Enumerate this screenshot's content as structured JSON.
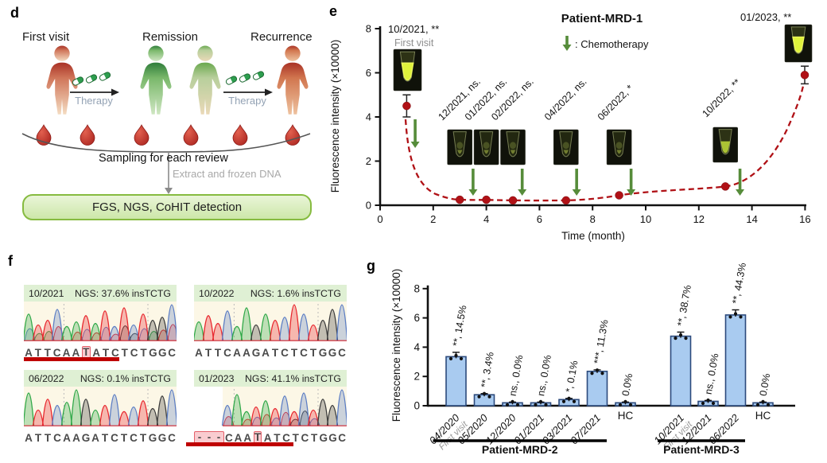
{
  "panel_d": {
    "panel_label": "d",
    "stages": [
      {
        "label": "First visit",
        "state": "disease"
      },
      {
        "label": "Remission",
        "state": "remission"
      },
      {
        "label": "Recurrence",
        "state": "disease"
      }
    ],
    "therapy_label": "Therapy",
    "sampling_label": "Sampling for each review",
    "extract_label": "Extract and frozen DNA",
    "detection_label": "FGS, NGS, CoHIT detection",
    "blood_drops": 6
  },
  "panel_e": {
    "panel_label": "e"
  },
  "panel_f": {
    "panel_label": "f",
    "base_colors": {
      "A": "#2fa848",
      "T": "#e8262d",
      "C": "#5b7dc4",
      "G": "#3a3a3a"
    },
    "header_bg": "#dff0d4",
    "trace_bg": "#fcf7e6",
    "underline_color": "#bf0000",
    "cards": [
      {
        "date": "10/2021",
        "ngs": "NGS: 37.6% insTCTG",
        "sequence": "ATTCAATATCTCTGGC",
        "highlight_index": 6,
        "underline_cells": 10,
        "underline_offset": 0,
        "deleted_prefix": 0,
        "mixed": true
      },
      {
        "date": "10/2022",
        "ngs": "NGS: 1.6% insTCTG",
        "sequence": "ATTCAAGATCTCTGGC",
        "highlight_index": -1,
        "underline_cells": 0,
        "underline_offset": 0,
        "deleted_prefix": 0,
        "mixed": false
      },
      {
        "date": "06/2022",
        "ngs": "NGS: 0.1% insTCTG",
        "sequence": "ATTCAAGATCTCTGGC",
        "highlight_index": -1,
        "underline_cells": 0,
        "underline_offset": 0,
        "deleted_prefix": 0,
        "mixed": false
      },
      {
        "date": "01/2023",
        "ngs": "NGS: 41.1% insTCTG",
        "sequence": "---CAATATCTCTGGC",
        "highlight_index": 6,
        "underline_cells": 10.4,
        "underline_offset": -10,
        "deleted_prefix": 3,
        "mixed": true
      }
    ]
  },
  "panel_g": {
    "panel_label": "g"
  },
  "chart_data": [
    {
      "id": "patient-mrd-1",
      "type": "scatter",
      "title": "Patient-MRD-1",
      "legend_label": ": Chemotherapy",
      "xlabel": "Time (month)",
      "ylabel": "Fluorescence intensity (×10000)",
      "xlim": [
        0,
        16
      ],
      "ylim": [
        0,
        8
      ],
      "xticks": [
        0,
        2,
        4,
        6,
        8,
        10,
        12,
        14,
        16
      ],
      "yticks": [
        0,
        2,
        4,
        6,
        8
      ],
      "line_color": "#b01116",
      "point_color": "#b01116",
      "arrow_color": "#568c3a",
      "points": [
        {
          "x": 1,
          "y": 4.5,
          "err": 0.5,
          "label": "10/2021, **",
          "sub": "First visit",
          "rotated": false,
          "cuvette": "bright"
        },
        {
          "x": 3,
          "y": 0.25,
          "err": 0.05,
          "label": "12/2021, ns.",
          "rotated": true,
          "cuvette": "dim"
        },
        {
          "x": 4,
          "y": 0.25,
          "err": 0.05,
          "label": "01/2022, ns.",
          "rotated": true,
          "cuvette": "dim"
        },
        {
          "x": 5,
          "y": 0.22,
          "err": 0.05,
          "label": "02/2022, ns.",
          "rotated": true,
          "cuvette": "dim"
        },
        {
          "x": 7,
          "y": 0.22,
          "err": 0.05,
          "label": "04/2022, ns.",
          "rotated": true,
          "cuvette": "dim"
        },
        {
          "x": 9,
          "y": 0.45,
          "err": 0.05,
          "label": "06/2022, *",
          "rotated": true,
          "cuvette": "dim"
        },
        {
          "x": 13,
          "y": 0.85,
          "err": 0.08,
          "label": "10/2022, **",
          "rotated": true,
          "cuvette": "mid"
        },
        {
          "x": 16,
          "y": 5.9,
          "err": 0.4,
          "label": "01/2023, **",
          "rotated": false,
          "cuvette": "bright"
        }
      ],
      "chemo_arrows_x": [
        1.32,
        3.5,
        5.35,
        7.4,
        9.45,
        13.55
      ]
    },
    {
      "id": "patient-mrd-2-3",
      "type": "bar",
      "ylabel": "Fluorescence intensity (×10000)",
      "ylim": [
        0,
        8
      ],
      "yticks": [
        0,
        2,
        4,
        6,
        8
      ],
      "bar_fill": "#a9cbf0",
      "bar_stroke": "#2c4a7c",
      "groups": [
        {
          "name": "Patient-MRD-2",
          "bars": [
            {
              "label": "04/2020",
              "sub": "First visit",
              "value": 3.35,
              "err": 0.3,
              "annotation": "**, 14.5%"
            },
            {
              "label": "05/2020",
              "value": 0.75,
              "err": 0.08,
              "annotation": "**, 3.4%"
            },
            {
              "label": "12/2020",
              "value": 0.2,
              "err": 0.05,
              "annotation": "ns., 0.0%"
            },
            {
              "label": "01/2021",
              "value": 0.2,
              "err": 0.05,
              "annotation": "ns., 0.0%"
            },
            {
              "label": "03/2021",
              "value": 0.42,
              "err": 0.08,
              "annotation": "*, 0.1%"
            },
            {
              "label": "07/2021",
              "value": 2.35,
              "err": 0.1,
              "annotation": "***, 11.3%"
            },
            {
              "label": "HC",
              "plain": true,
              "value": 0.2,
              "err": 0.05,
              "annotation": "0.0%"
            }
          ]
        },
        {
          "name": "Patient-MRD-3",
          "bars": [
            {
              "label": "10/2021",
              "sub": "First visit",
              "value": 4.75,
              "err": 0.28,
              "annotation": "**, 38.7%"
            },
            {
              "label": "12/2021",
              "value": 0.3,
              "err": 0.06,
              "annotation": "ns., 0.0%"
            },
            {
              "label": "06/2022",
              "value": 6.2,
              "err": 0.35,
              "annotation": "**, 44.3%"
            },
            {
              "label": "HC",
              "plain": true,
              "value": 0.2,
              "err": 0.05,
              "annotation": "0.0%"
            }
          ]
        }
      ]
    }
  ]
}
